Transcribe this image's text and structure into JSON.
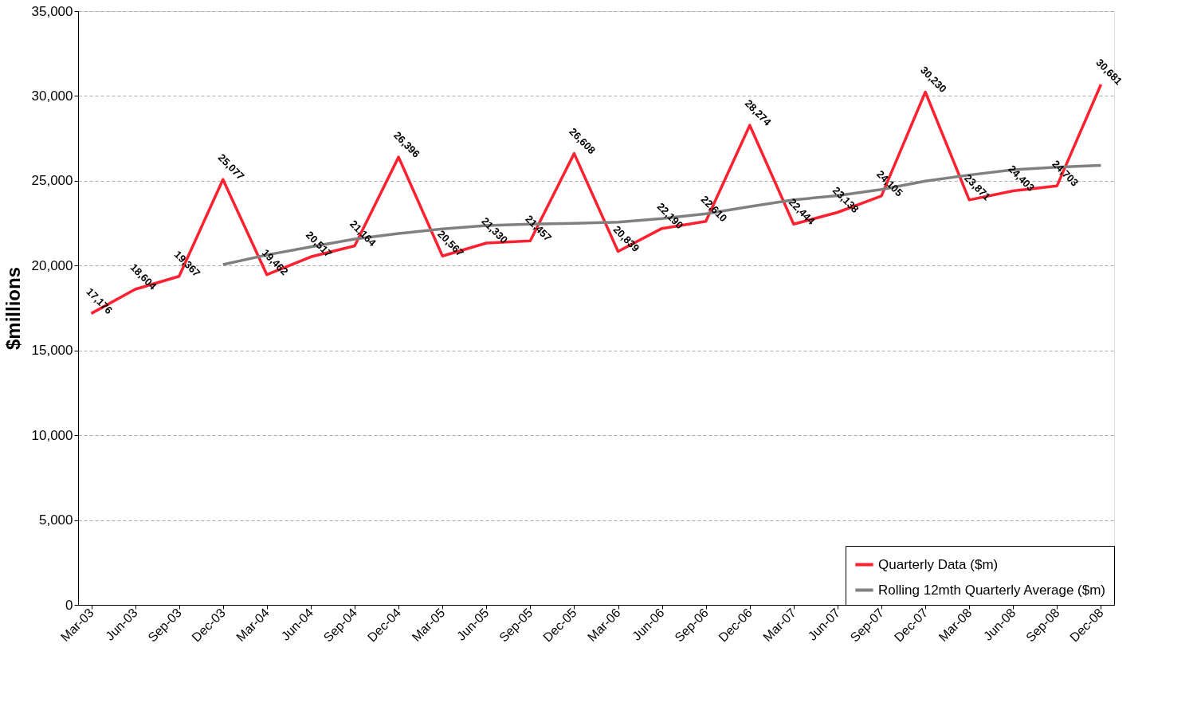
{
  "chart_data": {
    "type": "line",
    "ylabel": "$millions",
    "categories": [
      "Mar-03",
      "Jun-03",
      "Sep-03",
      "Dec-03",
      "Mar-04",
      "Jun-04",
      "Sep-04",
      "Dec-04",
      "Mar-05",
      "Jun-05",
      "Sep-05",
      "Dec-05",
      "Mar-06",
      "Jun-06",
      "Sep-06",
      "Dec-06",
      "Mar-07",
      "Jun-07",
      "Sep-07",
      "Dec-07",
      "Mar-08",
      "Jun-08",
      "Sep-08",
      "Dec-08"
    ],
    "series": [
      {
        "name": "Quarterly Data ($m)",
        "color": "#ff2030",
        "values": [
          17176,
          18604,
          19367,
          25077,
          19462,
          20517,
          21164,
          26396,
          20567,
          21330,
          21457,
          26608,
          20839,
          22190,
          22610,
          28274,
          22444,
          23138,
          24105,
          30230,
          23871,
          24403,
          24703,
          30681
        ],
        "value_labels": [
          "17,176",
          "18,604",
          "19,367",
          "25,077",
          "19,462",
          "20,517",
          "21,164",
          "26,396",
          "20,567",
          "21,330",
          "21,457",
          "26,608",
          "20,839",
          "22,190",
          "22,610",
          "28,274",
          "22,444",
          "23,138",
          "24,105",
          "30,230",
          "23,871",
          "24,403",
          "24,703",
          "30,681"
        ]
      },
      {
        "name": "Rolling 12mth Quarterly Average ($m)",
        "color": "#808080",
        "values": [
          null,
          null,
          null,
          20060,
          20630,
          21110,
          21560,
          21890,
          22160,
          22360,
          22440,
          22490,
          22560,
          22770,
          23060,
          23480,
          23880,
          24120,
          24490,
          24980,
          25340,
          25650,
          25800,
          25910
        ]
      }
    ],
    "ylim": [
      0,
      35000
    ],
    "yticks": [
      {
        "value": 0,
        "label": "0"
      },
      {
        "value": 5000,
        "label": "5,000"
      },
      {
        "value": 10000,
        "label": "10,000"
      },
      {
        "value": 15000,
        "label": "15,000"
      },
      {
        "value": 20000,
        "label": "20,000"
      },
      {
        "value": 25000,
        "label": "25,000"
      },
      {
        "value": 30000,
        "label": "30,000"
      },
      {
        "value": 35000,
        "label": "35,000"
      }
    ],
    "grid": "y",
    "legend": "bottom right",
    "marker": "none",
    "line_style": "solid"
  }
}
